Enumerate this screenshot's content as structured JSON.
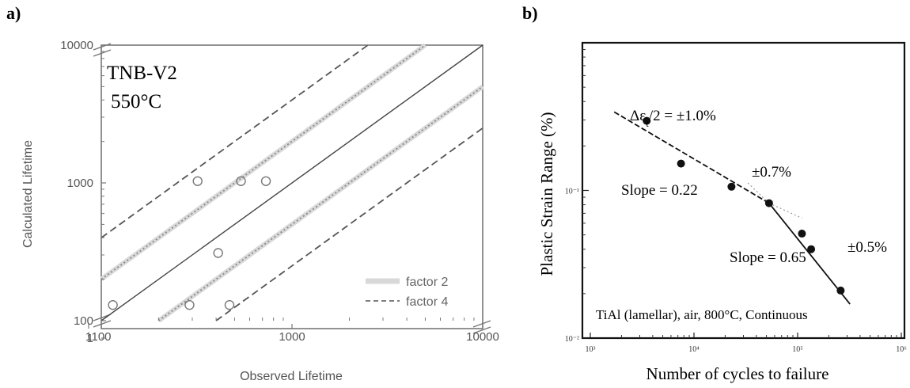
{
  "panels": {
    "a": "a)",
    "b": "b)"
  },
  "chart_data": [
    {
      "type": "scatter",
      "panel": "a)",
      "title": "TNB-V2",
      "subtitle": "550°C",
      "xlabel": "Observed Lifetime",
      "ylabel": "Calculated Lifetime",
      "xscale": "log",
      "yscale": "log",
      "xlim": [
        100,
        10000
      ],
      "ylim": [
        100,
        10000
      ],
      "xticks": [
        {
          "v": 1,
          "label": "1"
        },
        {
          "v": 100,
          "label": "100"
        },
        {
          "v": 1000,
          "label": "1000"
        },
        {
          "v": 10000,
          "label": "10000"
        }
      ],
      "yticks": [
        {
          "v": 1,
          "label": "1"
        },
        {
          "v": 100,
          "label": "100"
        },
        {
          "v": 1000,
          "label": "1000"
        },
        {
          "v": 10000,
          "label": "10000"
        }
      ],
      "axis_break": true,
      "points": [
        {
          "x": 115,
          "y": 130
        },
        {
          "x": 290,
          "y": 130
        },
        {
          "x": 470,
          "y": 130
        },
        {
          "x": 410,
          "y": 310
        },
        {
          "x": 320,
          "y": 1030
        },
        {
          "x": 540,
          "y": 1030
        },
        {
          "x": 730,
          "y": 1030
        }
      ],
      "reference_lines": [
        {
          "factor": 1,
          "style": "solid"
        },
        {
          "factor": 2,
          "style": "dotted"
        },
        {
          "factor": 0.5,
          "style": "dotted"
        },
        {
          "factor": 4,
          "style": "dashed"
        },
        {
          "factor": 0.25,
          "style": "dashed"
        }
      ],
      "legend": {
        "position": "bottom-right",
        "entries": [
          {
            "label": "factor 2",
            "style": "band"
          },
          {
            "label": "factor 4",
            "style": "dashed"
          }
        ]
      },
      "colors": {
        "markers": "#777777",
        "solid": "#444444",
        "dotted": "#888888",
        "dashed": "#555555",
        "band": "#d8d8d8"
      }
    },
    {
      "type": "line",
      "panel": "b)",
      "xlabel": "Number of cycles to failure",
      "ylabel": "Plastic Strain Range (%)",
      "xscale": "log",
      "yscale": "log",
      "xlim": [
        1000,
        1000000
      ],
      "ylim": [
        0.01,
        1
      ],
      "xtick_labels": [
        "10³",
        "10⁴",
        "10⁵",
        "10⁶"
      ],
      "ytick_labels": [
        "10⁻²",
        "10⁻¹"
      ],
      "series": [
        {
          "points": [
            {
              "x": 3500.0,
              "y": 0.296
            },
            {
              "x": 7500.0,
              "y": 0.152
            },
            {
              "x": 23000.0,
              "y": 0.106
            },
            {
              "x": 53000.0,
              "y": 0.082
            },
            {
              "x": 110000.0,
              "y": 0.051
            },
            {
              "x": 135000.0,
              "y": 0.04
            },
            {
              "x": 260000.0,
              "y": 0.021
            }
          ]
        }
      ],
      "fit_lines": [
        {
          "label": "Slope = 0.22",
          "from": [
            1700.0,
            0.34
          ],
          "to": [
            53000.0,
            0.082
          ],
          "style": "dashed"
        },
        {
          "label": "Slope = 0.65",
          "from": [
            53000.0,
            0.082
          ],
          "to": [
            320000.0,
            0.017
          ],
          "style": "solid"
        }
      ],
      "annotations": [
        {
          "text": "Δε",
          "sub": "t",
          "rest": "/2 = ±1.0%"
        },
        {
          "text": "±0.7%"
        },
        {
          "text": "±0.5%"
        },
        {
          "text": "Slope = 0.22"
        },
        {
          "text": "Slope = 0.65"
        },
        {
          "text": "TiAl (lamellar), air, 800°C, Continuous"
        }
      ],
      "colors": {
        "markers": "#111111",
        "lines": "#111111",
        "extension": "#999999"
      }
    }
  ]
}
